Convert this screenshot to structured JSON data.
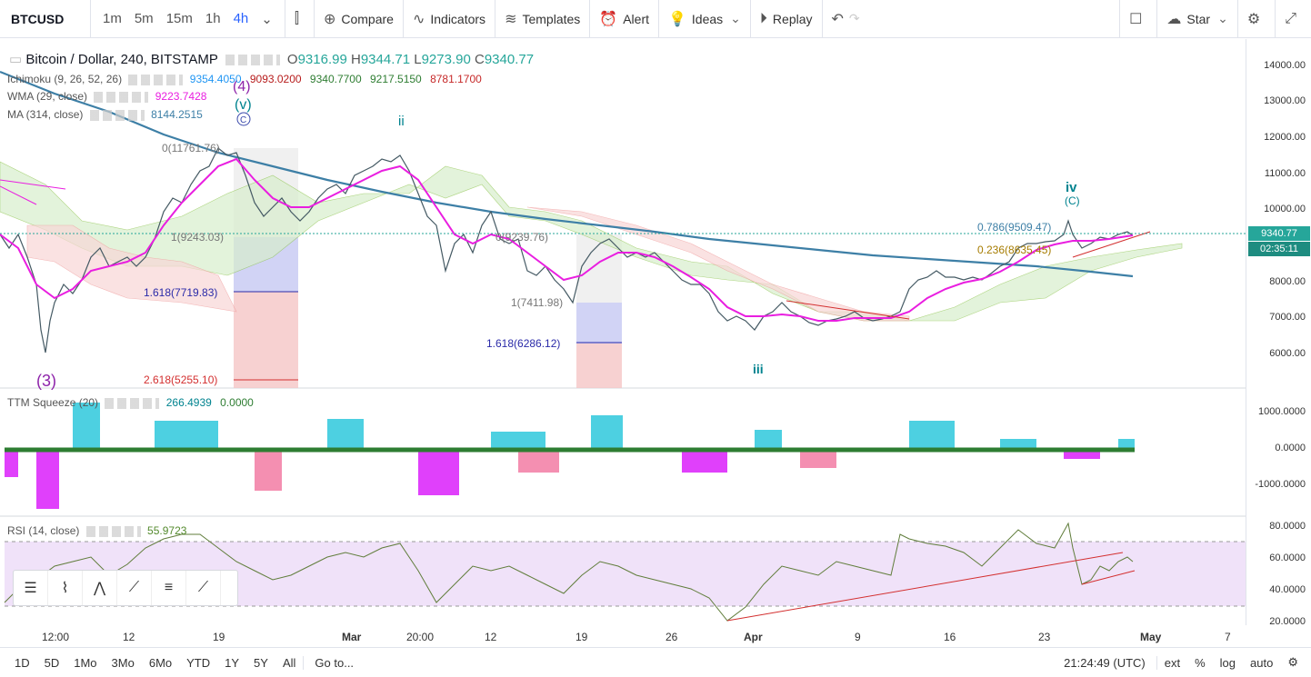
{
  "toolbar": {
    "symbol": "BTCUSD",
    "timeframes": [
      "1m",
      "5m",
      "15m",
      "1h",
      "4h"
    ],
    "active_timeframe": "4h",
    "compare": "Compare",
    "indicators": "Indicators",
    "templates": "Templates",
    "alert": "Alert",
    "ideas": "Ideas",
    "replay": "Replay",
    "star": "Star"
  },
  "main_legend": {
    "title": "Bitcoin / Dollar, 240, BITSTAMP",
    "o": "9316.99",
    "h": "9344.71",
    "l": "9273.90",
    "c": "9340.77",
    "o_label": "O",
    "h_label": "H",
    "l_label": "L",
    "c_label": "C"
  },
  "ichimoku": {
    "name": "Ichimoku (9, 26, 52, 26)",
    "v1": "9354.4050",
    "v2": "9093.0200",
    "v3": "9340.7700",
    "v4": "9217.5150",
    "v5": "8781.1700"
  },
  "wma": {
    "name": "WMA (29, close)",
    "value": "9223.7428"
  },
  "ma": {
    "name": "MA (314, close)",
    "value": "8144.2515"
  },
  "ttm": {
    "name": "TTM Squeeze (20)",
    "v1": "266.4939",
    "v2": "0.0000"
  },
  "rsi": {
    "name": "RSI (14, close)",
    "value": "55.9723"
  },
  "price_axis": [
    "14000.00",
    "13000.00",
    "12000.00",
    "11000.00",
    "10000.00",
    "9000.00",
    "8000.00",
    "7000.00",
    "6000.00"
  ],
  "last_price": "9340.77",
  "countdown": "02:35:11",
  "ttm_axis": [
    "1000.0000",
    "0.0000",
    "-1000.0000"
  ],
  "rsi_axis": [
    "80.0000",
    "60.0000",
    "40.0000",
    "20.0000"
  ],
  "time_axis": [
    "12:00",
    "12",
    "19",
    "Mar",
    "20:00",
    "12",
    "19",
    "26",
    "Apr",
    "9",
    "16",
    "23",
    "May",
    "7"
  ],
  "bottom": {
    "ranges": [
      "1D",
      "5D",
      "1Mo",
      "3Mo",
      "6Mo",
      "YTD",
      "1Y",
      "5Y",
      "All"
    ],
    "goto": "Go to...",
    "clock": "21:24:49 (UTC)",
    "ext": "ext",
    "pct": "%",
    "log": "log",
    "auto": "auto"
  },
  "annotations": {
    "wave4_top": "(4)",
    "wave_v_top": "(v)",
    "wave_c_top": "C",
    "wave_ii": "ii",
    "wave_iv_right": "iv",
    "wave_c_right": "(C)",
    "wave3_bottom": "(3)",
    "wave_iii": "iii",
    "fib_0": "0(11761.76)",
    "fib_1": "1(9243.03)",
    "fib_1618": "1.618(7719.83)",
    "fib_2618": "2.618(5255.10)",
    "fib_0b": "0(9239.76)",
    "fib_1b": "1(7411.98)",
    "fib_1618b": "1.618(6286.12)",
    "fib_786": "0.786(9509.47)",
    "fib_236": "0.236(8635.45)"
  },
  "colors": {
    "up": "#26a69a",
    "down": "#ef5350",
    "wma": "#e91ee0",
    "ma": "#3d7fa6",
    "rsi_band": "#e9d5f7"
  }
}
